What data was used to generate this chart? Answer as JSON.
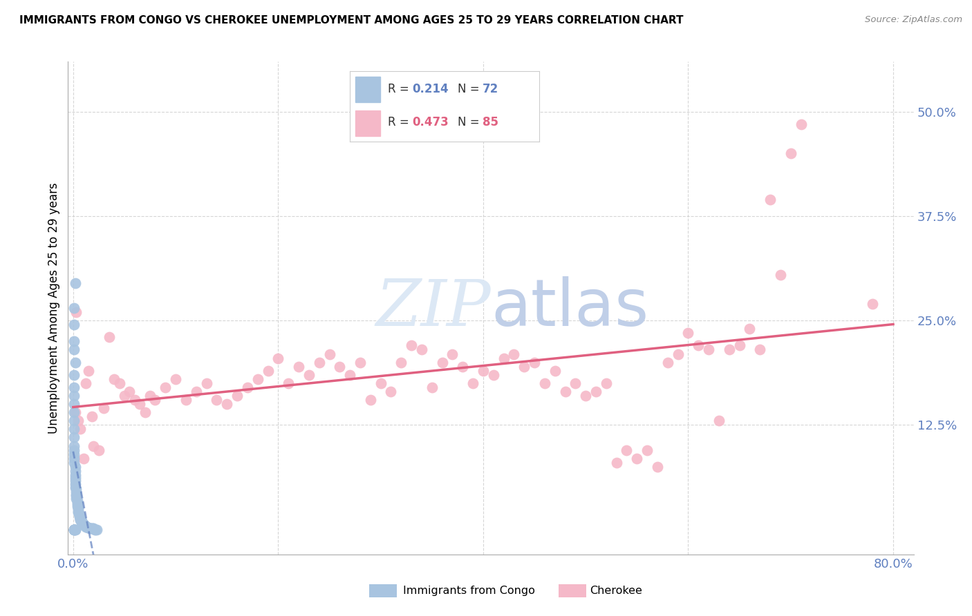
{
  "title": "IMMIGRANTS FROM CONGO VS CHEROKEE UNEMPLOYMENT AMONG AGES 25 TO 29 YEARS CORRELATION CHART",
  "source": "Source: ZipAtlas.com",
  "ylabel": "Unemployment Among Ages 25 to 29 years",
  "xlim": [
    -0.005,
    0.82
  ],
  "ylim": [
    -0.03,
    0.56
  ],
  "xtick_positions": [
    0.0,
    0.2,
    0.4,
    0.6,
    0.8
  ],
  "xticklabels": [
    "0.0%",
    "",
    "",
    "",
    "80.0%"
  ],
  "ytick_positions": [
    0.125,
    0.25,
    0.375,
    0.5
  ],
  "ytick_labels": [
    "12.5%",
    "25.0%",
    "37.5%",
    "50.0%"
  ],
  "congo_R": 0.214,
  "congo_N": 72,
  "cherokee_R": 0.473,
  "cherokee_N": 85,
  "congo_color": "#a8c4e0",
  "cherokee_color": "#f5b8c8",
  "congo_line_color": "#6080c0",
  "cherokee_line_color": "#e06080",
  "tick_color": "#6080c0",
  "watermark_text": "ZIPatlas",
  "watermark_color": "#dce8f5",
  "legend_label_color": "#333333",
  "congo_scatter_x": [
    0.002,
    0.001,
    0.001,
    0.001,
    0.001,
    0.002,
    0.001,
    0.001,
    0.001,
    0.001,
    0.001,
    0.001,
    0.001,
    0.001,
    0.001,
    0.001,
    0.001,
    0.001,
    0.001,
    0.002,
    0.002,
    0.002,
    0.002,
    0.002,
    0.002,
    0.002,
    0.003,
    0.003,
    0.003,
    0.003,
    0.003,
    0.004,
    0.004,
    0.004,
    0.004,
    0.005,
    0.005,
    0.005,
    0.005,
    0.006,
    0.006,
    0.006,
    0.007,
    0.007,
    0.007,
    0.008,
    0.008,
    0.009,
    0.009,
    0.01,
    0.01,
    0.011,
    0.012,
    0.012,
    0.013,
    0.014,
    0.015,
    0.016,
    0.017,
    0.018,
    0.019,
    0.02,
    0.021,
    0.022,
    0.023,
    0.001,
    0.001,
    0.002,
    0.002,
    0.001,
    0.001,
    0.001
  ],
  "congo_scatter_y": [
    0.295,
    0.265,
    0.245,
    0.225,
    0.215,
    0.2,
    0.185,
    0.17,
    0.16,
    0.15,
    0.14,
    0.13,
    0.12,
    0.11,
    0.1,
    0.095,
    0.09,
    0.085,
    0.08,
    0.075,
    0.07,
    0.065,
    0.062,
    0.058,
    0.054,
    0.05,
    0.048,
    0.045,
    0.042,
    0.04,
    0.037,
    0.034,
    0.032,
    0.03,
    0.028,
    0.026,
    0.024,
    0.022,
    0.02,
    0.018,
    0.016,
    0.015,
    0.013,
    0.012,
    0.011,
    0.01,
    0.009,
    0.008,
    0.007,
    0.006,
    0.005,
    0.005,
    0.004,
    0.003,
    0.003,
    0.002,
    0.002,
    0.001,
    0.001,
    0.001,
    0.001,
    0.001,
    0.0,
    0.0,
    0.0,
    0.0,
    0.0,
    0.0,
    0.0,
    0.0,
    0.0,
    0.0
  ],
  "cherokee_scatter_x": [
    0.002,
    0.003,
    0.005,
    0.007,
    0.01,
    0.012,
    0.015,
    0.018,
    0.02,
    0.025,
    0.03,
    0.035,
    0.04,
    0.045,
    0.05,
    0.055,
    0.06,
    0.065,
    0.07,
    0.075,
    0.08,
    0.09,
    0.1,
    0.11,
    0.12,
    0.13,
    0.14,
    0.15,
    0.16,
    0.17,
    0.18,
    0.19,
    0.2,
    0.21,
    0.22,
    0.23,
    0.24,
    0.25,
    0.26,
    0.27,
    0.28,
    0.29,
    0.3,
    0.31,
    0.32,
    0.33,
    0.34,
    0.35,
    0.36,
    0.37,
    0.38,
    0.39,
    0.4,
    0.41,
    0.42,
    0.43,
    0.44,
    0.45,
    0.46,
    0.47,
    0.48,
    0.49,
    0.5,
    0.51,
    0.52,
    0.53,
    0.54,
    0.55,
    0.56,
    0.57,
    0.58,
    0.59,
    0.6,
    0.61,
    0.62,
    0.63,
    0.64,
    0.65,
    0.66,
    0.67,
    0.68,
    0.69,
    0.7,
    0.71,
    0.78
  ],
  "cherokee_scatter_y": [
    0.14,
    0.26,
    0.13,
    0.12,
    0.085,
    0.175,
    0.19,
    0.135,
    0.1,
    0.095,
    0.145,
    0.23,
    0.18,
    0.175,
    0.16,
    0.165,
    0.155,
    0.15,
    0.14,
    0.16,
    0.155,
    0.17,
    0.18,
    0.155,
    0.165,
    0.175,
    0.155,
    0.15,
    0.16,
    0.17,
    0.18,
    0.19,
    0.205,
    0.175,
    0.195,
    0.185,
    0.2,
    0.21,
    0.195,
    0.185,
    0.2,
    0.155,
    0.175,
    0.165,
    0.2,
    0.22,
    0.215,
    0.17,
    0.2,
    0.21,
    0.195,
    0.175,
    0.19,
    0.185,
    0.205,
    0.21,
    0.195,
    0.2,
    0.175,
    0.19,
    0.165,
    0.175,
    0.16,
    0.165,
    0.175,
    0.08,
    0.095,
    0.085,
    0.095,
    0.075,
    0.2,
    0.21,
    0.235,
    0.22,
    0.215,
    0.13,
    0.215,
    0.22,
    0.24,
    0.215,
    0.395,
    0.305,
    0.45,
    0.485,
    0.27
  ]
}
